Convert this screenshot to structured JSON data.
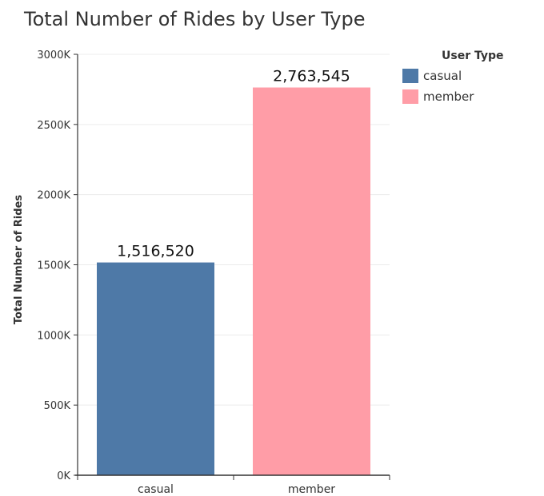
{
  "chart_data": {
    "type": "bar",
    "title": "Total Number of Rides by User Type",
    "xlabel": "",
    "ylabel": "Total Number of Rides",
    "categories": [
      "casual",
      "member"
    ],
    "values": [
      1516520,
      2763545
    ],
    "data_labels": [
      "1,516,520",
      "2,763,545"
    ],
    "colors": [
      "#4e79a7",
      "#ff9da7"
    ],
    "ylim": [
      0,
      3000000
    ],
    "yticks": [
      0,
      500000,
      1000000,
      1500000,
      2000000,
      2500000,
      3000000
    ],
    "ytick_labels": [
      "0K",
      "500K",
      "1000K",
      "1500K",
      "2000K",
      "2500K",
      "3000K"
    ],
    "grid": true,
    "legend": {
      "title": "User Type",
      "position": "right",
      "entries": [
        "casual",
        "member"
      ]
    }
  }
}
